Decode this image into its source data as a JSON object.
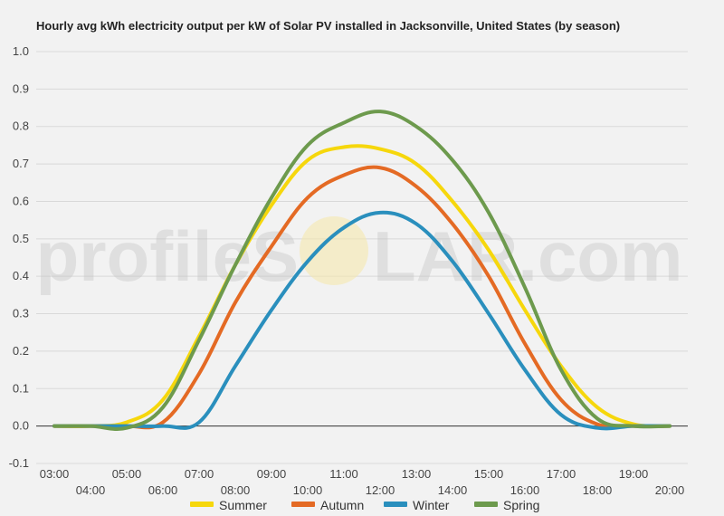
{
  "watermark": {
    "text_left": "profileS",
    "text_right": "LAR.com"
  },
  "chart_data": {
    "type": "line",
    "title": "Hourly avg kWh electricity output per kW of Solar PV installed in Jacksonville, United States (by season)",
    "xlabel": "",
    "ylabel": "",
    "ylim": [
      -0.1,
      1.0
    ],
    "yticks": [
      "1.0",
      "0.9",
      "0.8",
      "0.7",
      "0.6",
      "0.5",
      "0.4",
      "0.3",
      "0.2",
      "0.1",
      "0.0",
      "-0.1"
    ],
    "x_ticks": [
      "03:00",
      "04:00",
      "05:00",
      "06:00",
      "07:00",
      "08:00",
      "09:00",
      "10:00",
      "11:00",
      "12:00",
      "13:00",
      "14:00",
      "15:00",
      "16:00",
      "17:00",
      "18:00",
      "19:00",
      "20:00"
    ],
    "x_hours": [
      3,
      4,
      5,
      6,
      7,
      8,
      9,
      10,
      11,
      12,
      13,
      14,
      15,
      16,
      17,
      18,
      19,
      20
    ],
    "grid": true,
    "legend_position": "bottom",
    "series": [
      {
        "name": "Summer",
        "color": "#f6d70c",
        "values": [
          0.0,
          0.0,
          0.01,
          0.07,
          0.24,
          0.43,
          0.59,
          0.71,
          0.745,
          0.74,
          0.7,
          0.6,
          0.47,
          0.31,
          0.16,
          0.05,
          0.005,
          0.0
        ]
      },
      {
        "name": "Autumn",
        "color": "#e46a24",
        "values": [
          0.0,
          0.0,
          0.0,
          0.01,
          0.14,
          0.33,
          0.48,
          0.61,
          0.67,
          0.69,
          0.64,
          0.54,
          0.4,
          0.22,
          0.07,
          0.005,
          0.0,
          0.0
        ]
      },
      {
        "name": "Winter",
        "color": "#2a8fbd",
        "values": [
          0.0,
          0.0,
          0.0,
          0.0,
          0.01,
          0.16,
          0.31,
          0.44,
          0.53,
          0.57,
          0.54,
          0.44,
          0.3,
          0.15,
          0.03,
          -0.005,
          0.0,
          0.0
        ]
      },
      {
        "name": "Spring",
        "color": "#6d9a4d",
        "values": [
          0.0,
          0.0,
          -0.005,
          0.05,
          0.23,
          0.43,
          0.61,
          0.75,
          0.81,
          0.84,
          0.8,
          0.71,
          0.57,
          0.37,
          0.15,
          0.02,
          0.0,
          0.0
        ]
      }
    ]
  }
}
